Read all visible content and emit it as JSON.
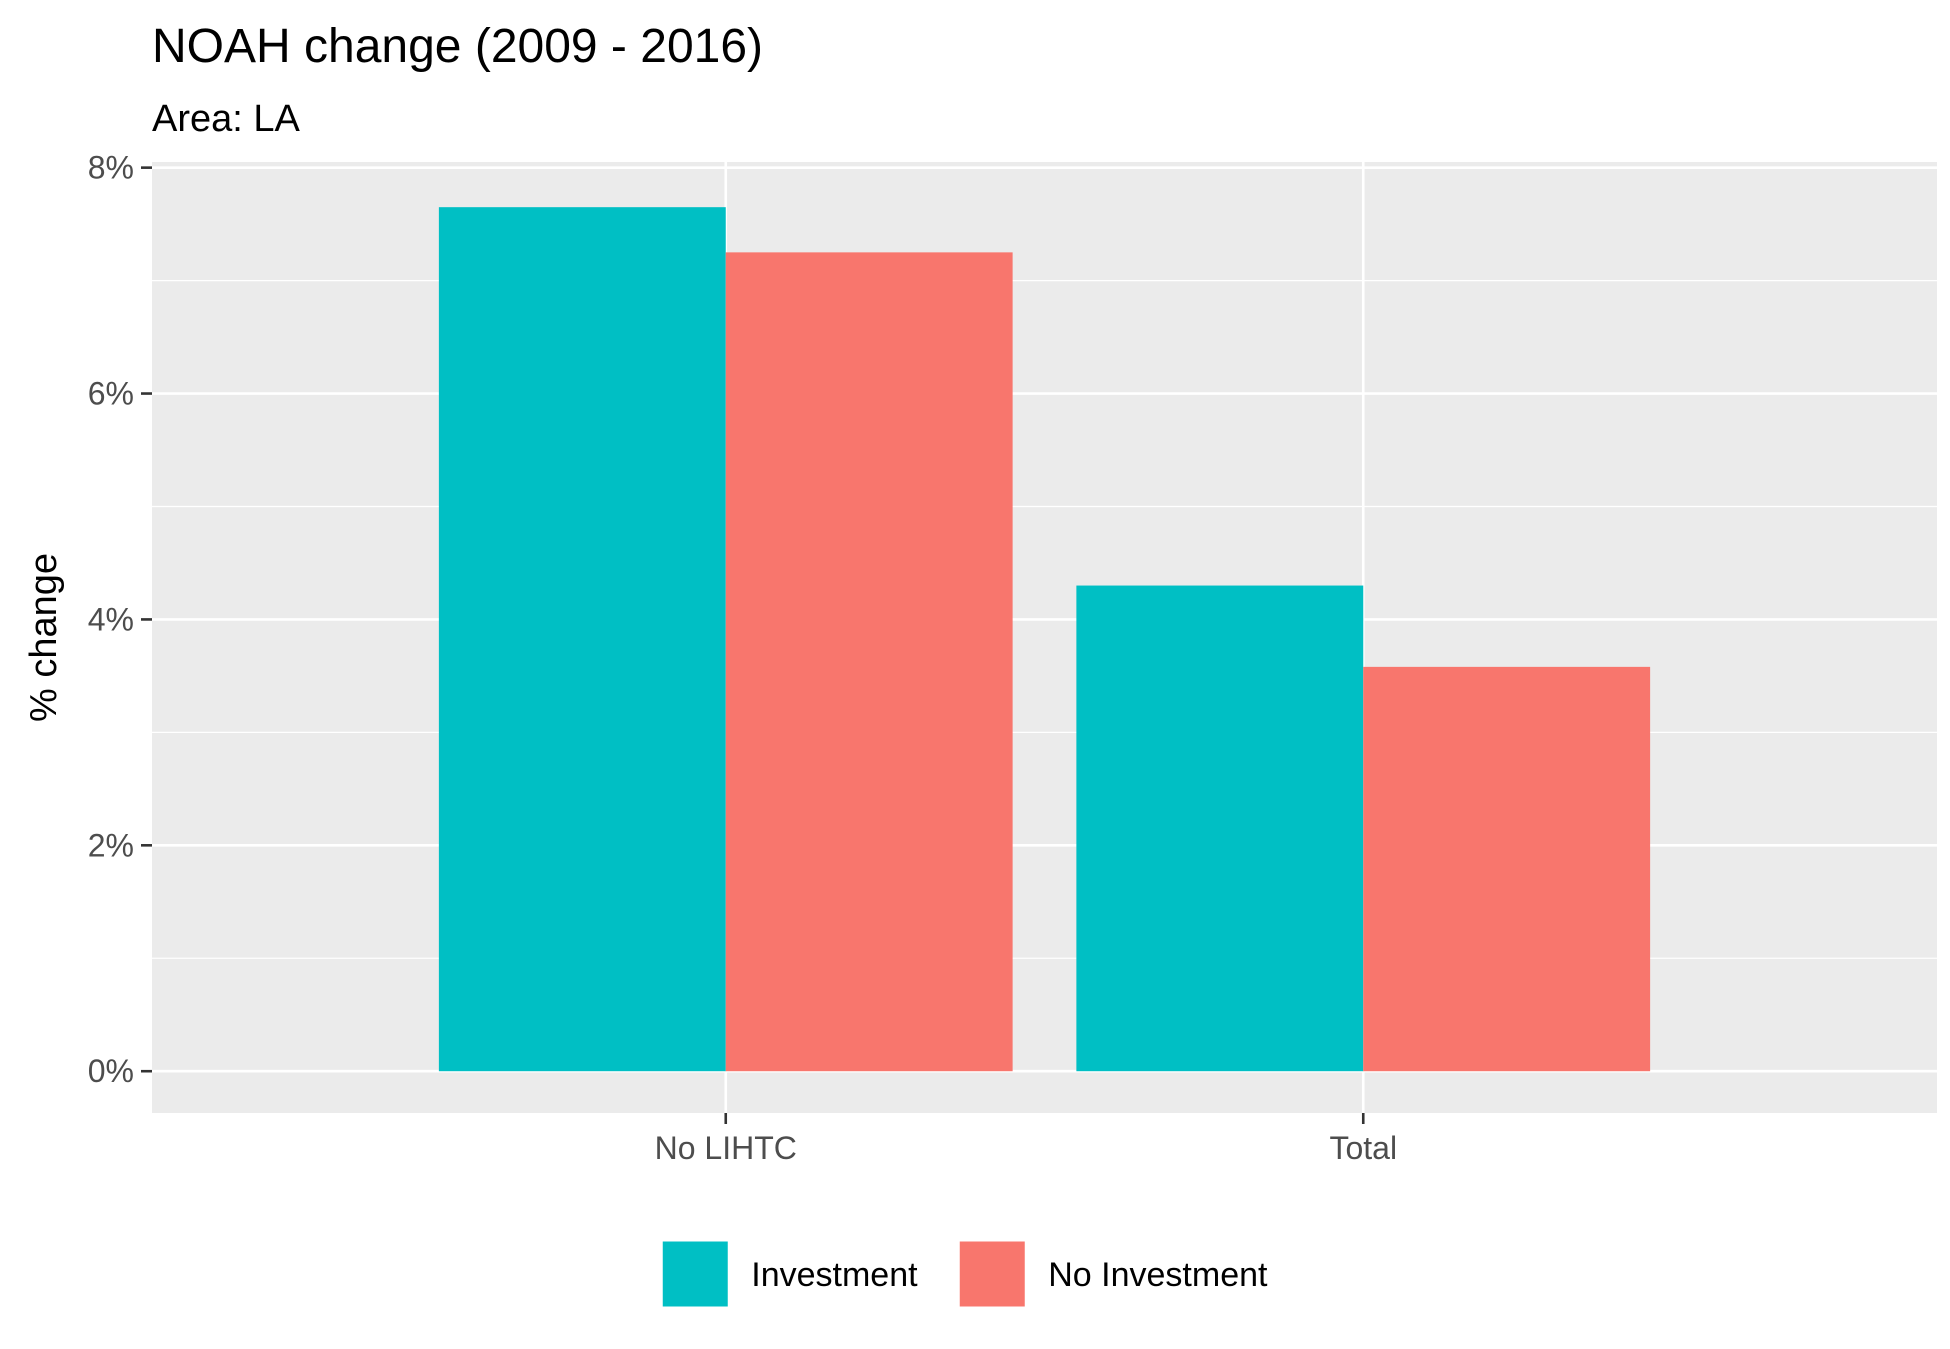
{
  "chart_data": {
    "type": "bar",
    "title": "NOAH change (2009 - 2016)",
    "subtitle": "Area: LA",
    "xlabel": "",
    "ylabel": "% change",
    "categories": [
      "No LIHTC",
      "Total"
    ],
    "series": [
      {
        "name": "Investment",
        "color": "#00BFC4",
        "values": [
          7.65,
          4.3
        ]
      },
      {
        "name": "No Investment",
        "color": "#F8766D",
        "values": [
          7.25,
          3.58
        ]
      }
    ],
    "ylim": [
      -0.37,
      8.05
    ],
    "yticks": [
      0,
      2,
      4,
      6,
      8
    ],
    "ytick_labels": [
      "0%",
      "2%",
      "4%",
      "6%",
      "8%"
    ],
    "grid": true,
    "legend_position": "bottom",
    "colors": {
      "panel_background": "#EBEBEB",
      "grid_line": "#FFFFFF",
      "tick_text": "#4D4D4D",
      "tick_mark": "#333333"
    }
  }
}
